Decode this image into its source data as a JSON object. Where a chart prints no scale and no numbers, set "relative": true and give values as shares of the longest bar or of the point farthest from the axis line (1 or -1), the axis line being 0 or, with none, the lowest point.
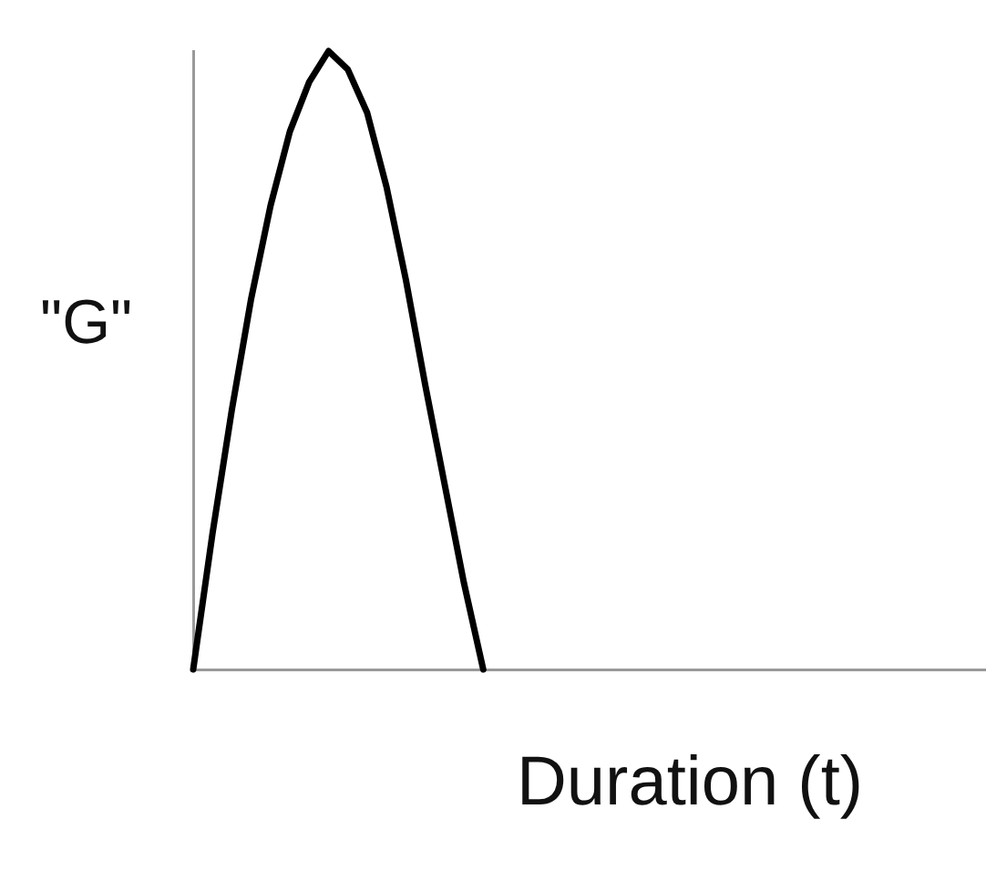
{
  "chart_data": {
    "type": "line",
    "relative": true,
    "xlabel": "Duration (t)",
    "ylabel": "\"G\"",
    "categories": [
      null,
      null,
      null,
      null,
      null,
      null,
      null,
      null,
      null,
      null,
      null,
      null,
      null,
      null,
      null,
      null,
      null,
      null,
      null,
      null,
      null,
      null,
      null,
      null,
      null,
      null,
      null,
      null,
      null,
      null,
      null,
      null,
      null,
      null,
      null,
      null,
      null,
      null,
      null,
      null,
      null,
      null
    ],
    "series": [
      {
        "color": "#000000",
        "values": [
          0,
          0.22,
          0.42,
          0.6,
          0.75,
          0.87,
          0.95,
          1,
          0.97,
          0.9,
          0.78,
          0.63,
          0.46,
          0.3,
          0.14,
          0,
          null,
          null,
          null,
          null,
          null,
          null,
          null,
          null,
          null,
          null,
          null,
          null,
          null,
          null,
          null,
          null,
          null,
          null,
          null,
          null,
          null,
          null,
          null,
          null,
          null,
          null
        ]
      }
    ],
    "grid": false,
    "legend": false,
    "marker": "none",
    "line_style": "solid"
  }
}
